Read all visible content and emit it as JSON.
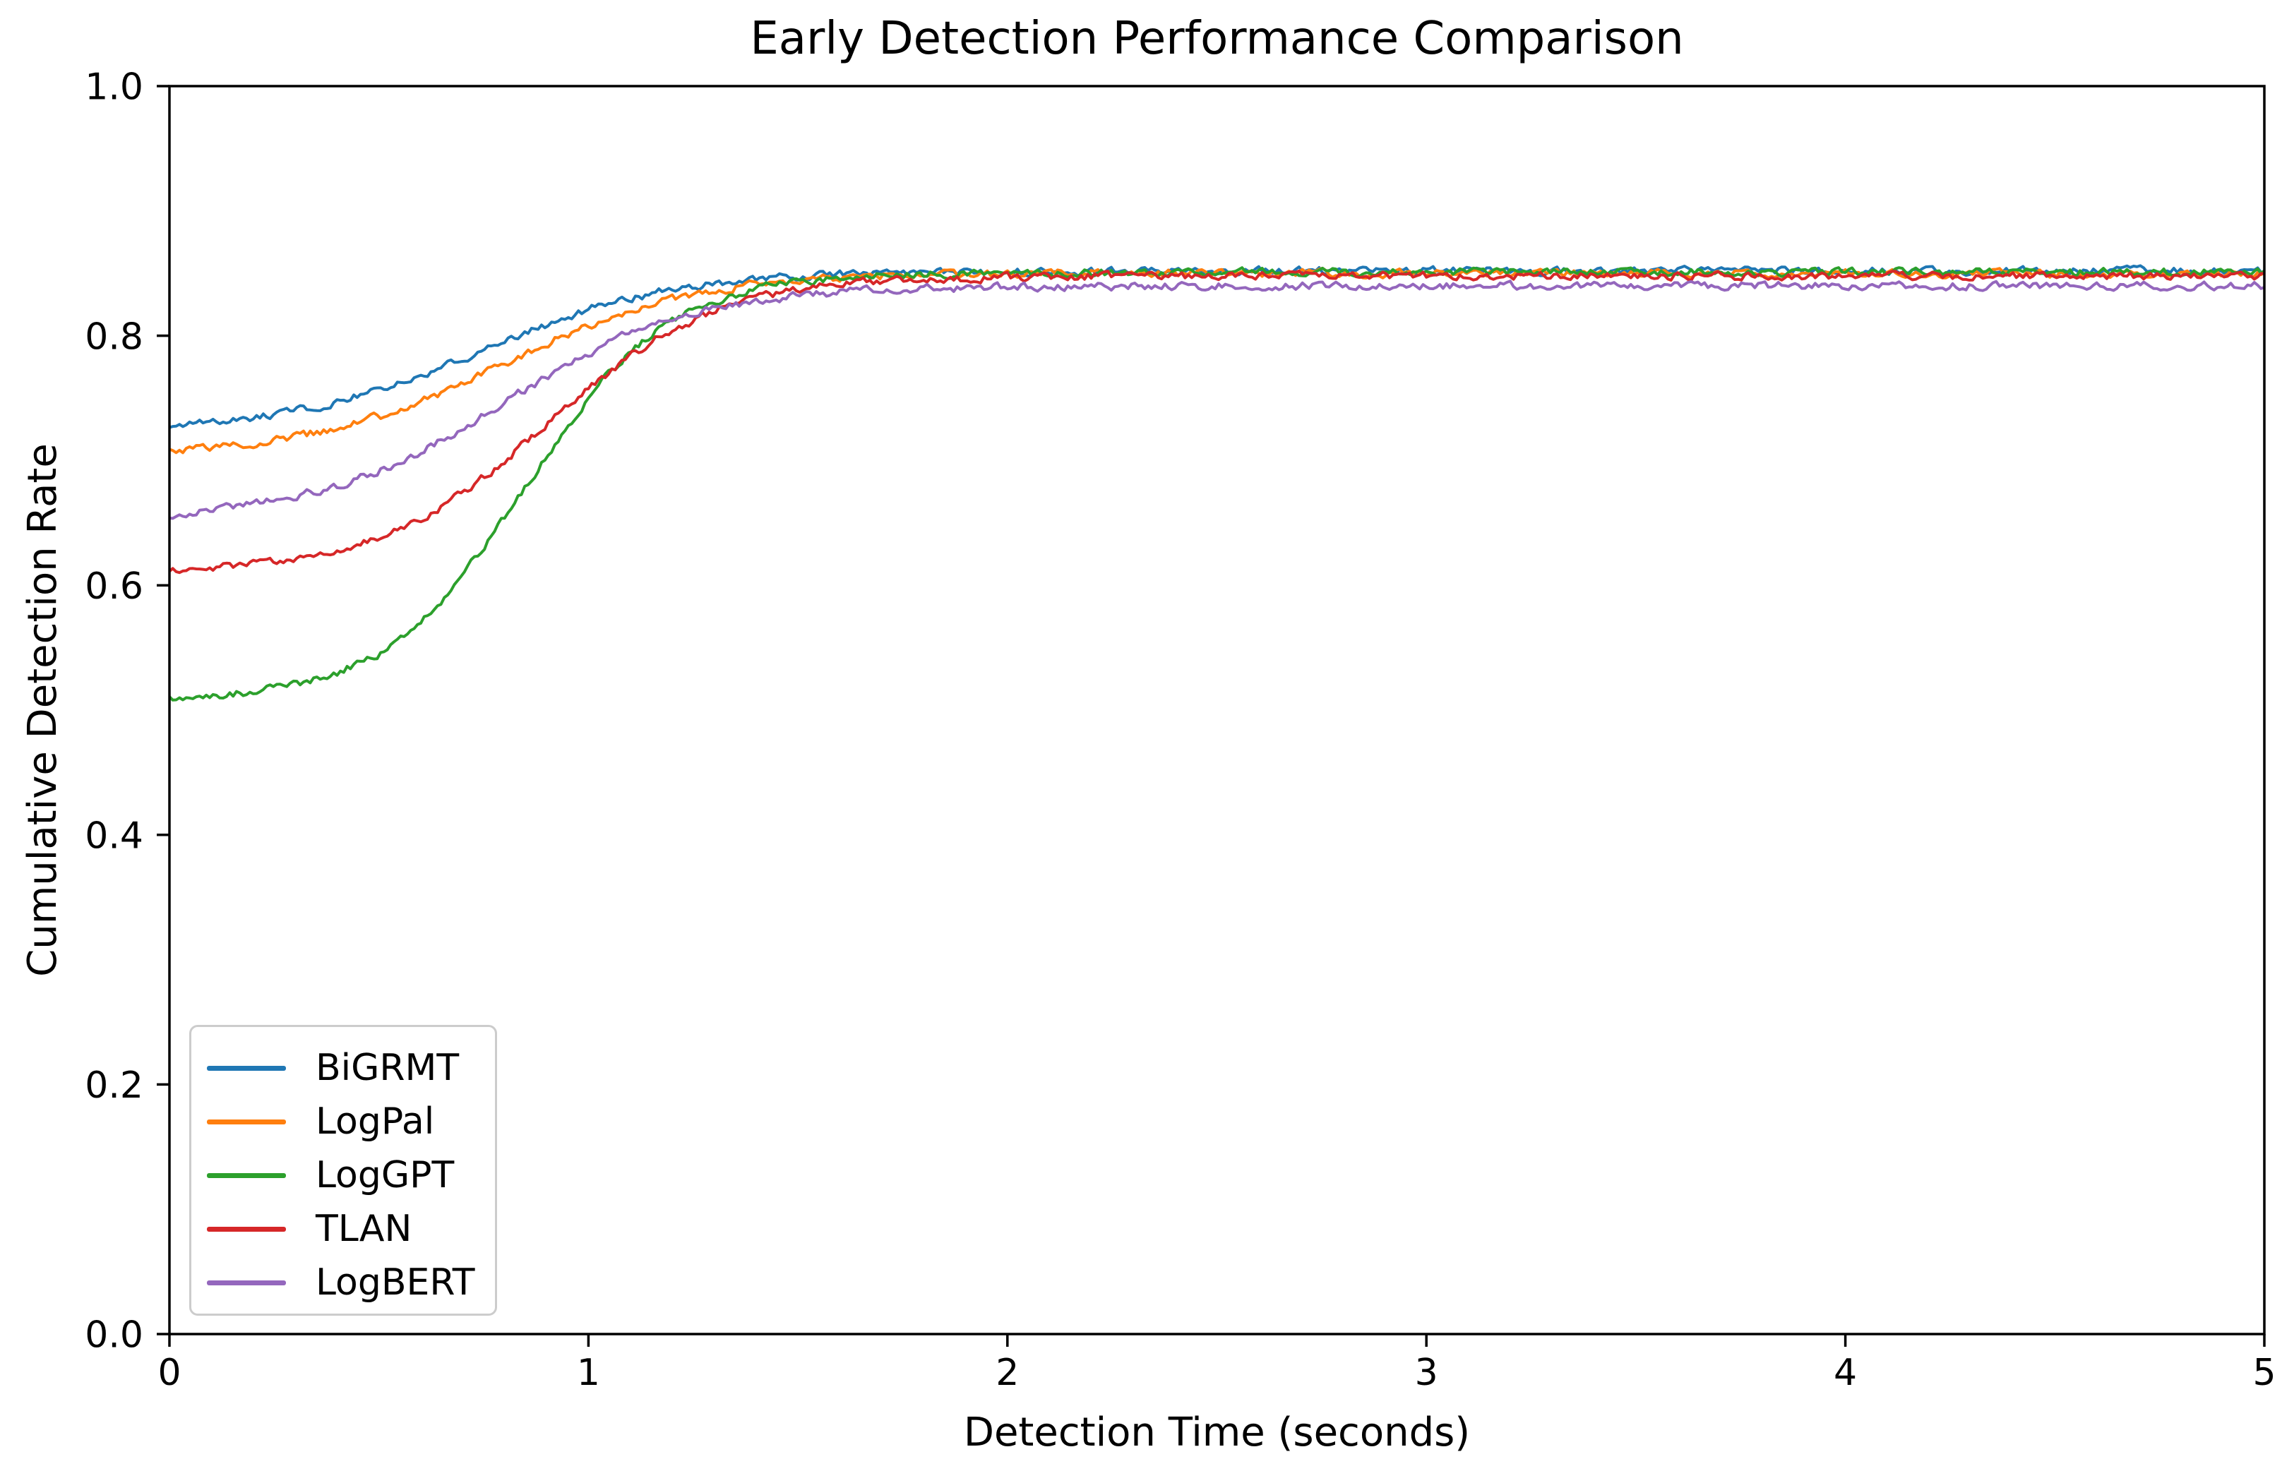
{
  "chart_data": {
    "type": "line",
    "title": "Early Detection Performance Comparison",
    "xlabel": "Detection Time (seconds)",
    "ylabel": "Cumulative Detection Rate",
    "xlim": [
      0,
      5
    ],
    "ylim": [
      0.0,
      1.0
    ],
    "grid": false,
    "legend_position": "lower left",
    "xticks": {
      "values": [
        0,
        1,
        2,
        3,
        4,
        5
      ],
      "labels": [
        "0",
        "1",
        "2",
        "3",
        "4",
        "5"
      ]
    },
    "yticks": {
      "values": [
        0.0,
        0.2,
        0.4,
        0.6,
        0.8,
        1.0
      ],
      "labels": [
        "0.0",
        "0.2",
        "0.4",
        "0.6",
        "0.8",
        "1.0"
      ]
    },
    "noise_amplitude": 0.0035,
    "x": [
      0,
      0.1,
      0.2,
      0.3,
      0.4,
      0.5,
      0.6,
      0.7,
      0.8,
      0.9,
      1.0,
      1.1,
      1.2,
      1.3,
      1.4,
      1.5,
      1.6,
      1.7,
      1.8,
      1.9,
      2.0,
      2.5,
      3.0,
      3.5,
      4.0,
      4.5,
      5.0
    ],
    "series": [
      {
        "name": "BiGRMT",
        "color": "#1f77b4",
        "values": [
          0.727,
          0.73,
          0.734,
          0.74,
          0.747,
          0.756,
          0.768,
          0.781,
          0.796,
          0.809,
          0.821,
          0.83,
          0.837,
          0.842,
          0.846,
          0.848,
          0.85,
          0.85,
          0.851,
          0.851,
          0.851,
          0.852,
          0.852,
          0.852,
          0.852,
          0.852,
          0.852
        ]
      },
      {
        "name": "LogPal",
        "color": "#ff7f0e",
        "values": [
          0.708,
          0.711,
          0.714,
          0.719,
          0.726,
          0.735,
          0.747,
          0.761,
          0.778,
          0.794,
          0.808,
          0.82,
          0.829,
          0.836,
          0.841,
          0.844,
          0.846,
          0.848,
          0.849,
          0.849,
          0.85,
          0.85,
          0.85,
          0.85,
          0.85,
          0.85,
          0.85
        ]
      },
      {
        "name": "LogGPT",
        "color": "#2ca02c",
        "values": [
          0.51,
          0.512,
          0.515,
          0.52,
          0.53,
          0.545,
          0.57,
          0.607,
          0.654,
          0.704,
          0.751,
          0.788,
          0.813,
          0.828,
          0.838,
          0.843,
          0.846,
          0.848,
          0.849,
          0.85,
          0.85,
          0.851,
          0.851,
          0.851,
          0.851,
          0.851,
          0.851
        ]
      },
      {
        "name": "TLAN",
        "color": "#d62728",
        "values": [
          0.612,
          0.614,
          0.617,
          0.621,
          0.628,
          0.638,
          0.653,
          0.674,
          0.7,
          0.729,
          0.758,
          0.784,
          0.805,
          0.82,
          0.83,
          0.837,
          0.841,
          0.844,
          0.845,
          0.846,
          0.847,
          0.848,
          0.848,
          0.848,
          0.848,
          0.848,
          0.848
        ]
      },
      {
        "name": "LogBERT",
        "color": "#9467bd",
        "values": [
          0.656,
          0.66,
          0.665,
          0.671,
          0.68,
          0.692,
          0.707,
          0.726,
          0.747,
          0.767,
          0.786,
          0.802,
          0.813,
          0.822,
          0.828,
          0.832,
          0.835,
          0.837,
          0.838,
          0.838,
          0.839,
          0.84,
          0.84,
          0.84,
          0.84,
          0.84,
          0.84
        ]
      }
    ]
  }
}
